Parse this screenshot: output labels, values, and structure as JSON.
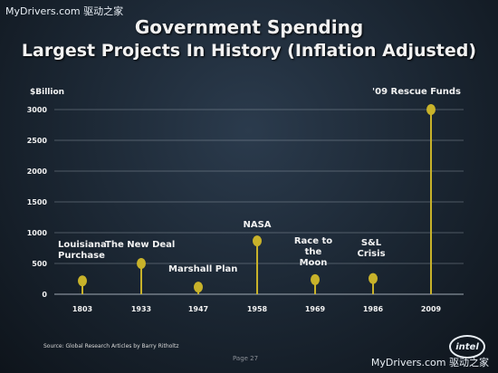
{
  "watermark_top": "MyDrivers.com 驱动之家",
  "watermark_bottom": "MyDrivers.com 驱动之家",
  "footer": {
    "source": "Source: Global Research Articles by Barry Ritholtz",
    "page": "Page 27",
    "logo": "intel"
  },
  "colors": {
    "marker": "#c8b22a",
    "grid": "#aab4be",
    "text": "#f2f2f2"
  },
  "chart_data": {
    "type": "scatter",
    "title": "Government Spending",
    "subtitle": "Largest Projects In History (Inflation Adjusted)",
    "ylabel": "$Billion",
    "ylim": [
      0,
      3000
    ],
    "yticks": [
      0,
      500,
      1000,
      1500,
      2000,
      2500,
      3000
    ],
    "grid": true,
    "categories": [
      "1803",
      "1933",
      "1947",
      "1958",
      "1969",
      "1986",
      "2009"
    ],
    "series": [
      {
        "labels": [
          "Louisiana Purchase",
          "The New Deal",
          "Marshall Plan",
          "NASA",
          "Race to the Moon",
          "S&L Crisis",
          "'09 Rescue Funds"
        ],
        "values": [
          217,
          500,
          115,
          866,
          237,
          256,
          3000
        ]
      }
    ]
  }
}
